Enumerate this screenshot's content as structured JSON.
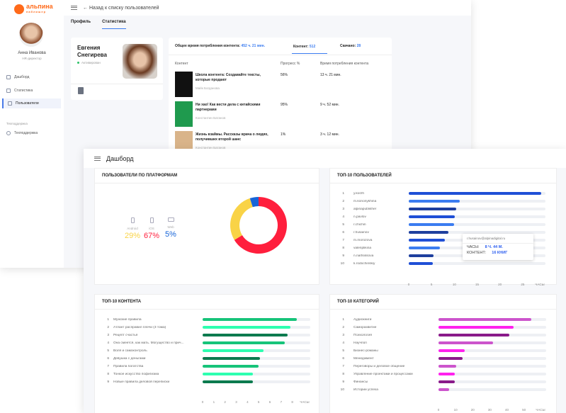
{
  "back_window": {
    "logo": {
      "name": "альпина",
      "sub": "паблишер",
      "color": "#ff6a1a"
    },
    "sidebar": {
      "user_name": "Анна Иванова",
      "user_role": "HR-директор",
      "items": [
        {
          "label": "Дашборд",
          "icon": "dashboard-icon"
        },
        {
          "label": "Статистика",
          "icon": "bar-chart-icon"
        },
        {
          "label": "Пользователи",
          "icon": "users-icon",
          "active": true
        }
      ],
      "section": "Техподдержка",
      "support": {
        "label": "Техподдержка",
        "icon": "support-icon"
      }
    },
    "topbar": {
      "back_link": "← Назад к списку пользователей"
    },
    "tabs": [
      {
        "label": "Профиль"
      },
      {
        "label": "Статистика",
        "active": true
      }
    ],
    "profile": {
      "name": "Евгения Снегирева",
      "status": "Активирован"
    },
    "stats": {
      "total_label": "Общее время потребления контента:",
      "total_value": "452 ч. 21 мин.",
      "content_label": "Контент:",
      "content_value": "512",
      "downloads_label": "Скачано:",
      "downloads_value": "28",
      "columns": [
        "Контент",
        "Прогресс %",
        "Время потребления контента"
      ],
      "rows": [
        {
          "title": "Школа контента: Создавайте тексты, которые продают",
          "author": "Майк Богданова",
          "progress": "56%",
          "time": "13 ч. 21 мин.",
          "cover": "#111111"
        },
        {
          "title": "Ни хао! Как вести дела с китайскими партнерами",
          "author": "Константин Батанов",
          "progress": "95%",
          "time": "9 ч. 52 мин.",
          "cover": "#1f9a4e"
        },
        {
          "title": "Жизнь взаймы. Рассказы врача о людях, получивших второй шанс",
          "author": "Константин Батанов",
          "progress": "1%",
          "time": "3 ч. 12 мин.",
          "cover": "#d9b48a"
        }
      ]
    }
  },
  "front_window": {
    "title": "Дашборд",
    "platforms": {
      "title": "ПОЛЬЗОВАТЕЛИ ПО ПЛАТФОРМАМ",
      "items": [
        {
          "label": "Android",
          "value": "29%",
          "color": "#f9d347",
          "icon": "phone-icon"
        },
        {
          "label": "iOS",
          "value": "67%",
          "color": "#ff1f3d",
          "icon": "phone-icon"
        },
        {
          "label": "Web",
          "value": "5%",
          "color": "#1664d8",
          "icon": "monitor-icon"
        }
      ]
    },
    "tooltip": {
      "email": "r.husainov@alpinadigital.ru",
      "hours_label": "ЧАСЫ:",
      "hours_value": "8 Ч. 44 М.",
      "content_label": "КОНТЕНТ:",
      "content_value": "16 КНИГ"
    }
  },
  "chart_data": [
    {
      "type": "donut",
      "title": "ПОЛЬЗОВАТЕЛИ ПО ПЛАТФОРМАМ",
      "categories": [
        "iOS",
        "Android",
        "Web"
      ],
      "values": [
        67,
        29,
        5
      ],
      "colors": [
        "#ff1f3d",
        "#f9d347",
        "#1664d8"
      ]
    },
    {
      "type": "bar",
      "orientation": "horizontal",
      "title": "ТОП-10 ПОЛЬЗОВАТЕЛЕЙ",
      "xlabel": "ЧАСЫ",
      "xlim": [
        0,
        30
      ],
      "ticks": [
        "0",
        "5",
        "10",
        "15",
        "20",
        "25"
      ],
      "categories": [
        "y.korzh",
        "m.kononykhina",
        "alpinapublisher",
        "n.pavlov",
        "r.chichin",
        "r.husainov",
        "m.morozova",
        "valeriplikina",
        "n.nartsissova",
        "k.rodochinskiy"
      ],
      "values": [
        29,
        11.2,
        10.4,
        10.1,
        10,
        8.7,
        8,
        6.8,
        5.5,
        5.3
      ],
      "colors": [
        "#1f4fd6",
        "#3b7cf0",
        "#1e3f9e"
      ]
    },
    {
      "type": "bar",
      "orientation": "horizontal",
      "title": "ТОП-10 КОНТЕНТА",
      "xlabel": "ЧАСЫ",
      "xlim": [
        0,
        9.6
      ],
      "ticks": [
        "0",
        "1",
        "2",
        "3",
        "4",
        "5",
        "6",
        "7",
        "8"
      ],
      "categories": [
        "Мужские правила",
        "Атлант расправил плечи (3 тома)",
        "Рецепт счастья",
        "Она смеется, как мать. Могущество и прич...",
        "Воля и самоконтроль",
        "Девушка с деньгами",
        "Правила богатства",
        "Тонкое искусство пофигизма",
        "Новые правила деловой переписки"
      ],
      "values": [
        8.4,
        7.8,
        7.6,
        7.3,
        5.4,
        5.1,
        5,
        4.5,
        4.5
      ],
      "colors": [
        "#17c47a",
        "#2dffb0",
        "#0b7a4e"
      ]
    },
    {
      "type": "bar",
      "orientation": "horizontal",
      "title": "ТОП-10 КАТЕГОРИЙ",
      "xlabel": "ЧАСЫ",
      "xlim": [
        0,
        63
      ],
      "ticks": [
        "0",
        "10",
        "20",
        "30",
        "40",
        "50"
      ],
      "categories": [
        "Аудиокниги",
        "Саморазвитие",
        "Психология",
        "Научпоп",
        "Бизнес-романы",
        "Менеджмент",
        "Переговоры и деловое общение",
        "Управление проектами и процессами",
        "Финансы",
        "Истории успеха"
      ],
      "values": [
        54.5,
        44,
        41.3,
        32,
        15.3,
        14.2,
        10.5,
        9.7,
        9.7,
        6.3
      ],
      "colors": [
        "#cc55cc",
        "#ff22ee",
        "#8a1a8a"
      ]
    }
  ]
}
